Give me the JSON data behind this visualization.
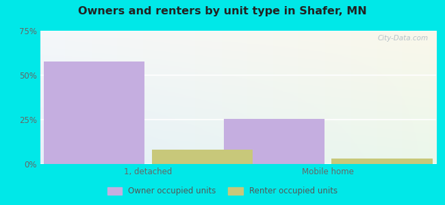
{
  "title": "Owners and renters by unit type in Shafer, MN",
  "categories": [
    "1, detached",
    "Mobile home"
  ],
  "owner_values": [
    57.5,
    25.5
  ],
  "renter_values": [
    8.0,
    3.0
  ],
  "owner_color": "#c5aee0",
  "renter_color": "#c8c87a",
  "ylim": [
    0,
    75
  ],
  "yticks": [
    0,
    25,
    50,
    75
  ],
  "ytick_labels": [
    "0%",
    "25%",
    "50%",
    "75%"
  ],
  "outer_bg": "#00e8e8",
  "watermark": "City-Data.com",
  "legend_labels": [
    "Owner occupied units",
    "Renter occupied units"
  ],
  "bar_width": 0.28,
  "x_positions": [
    0.25,
    0.75
  ]
}
